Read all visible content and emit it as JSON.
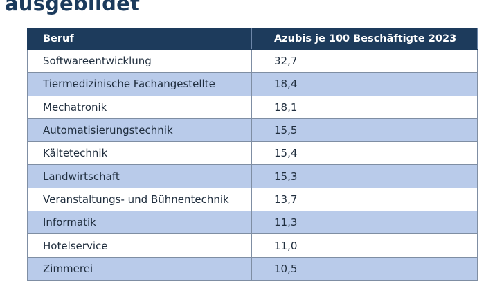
{
  "heading": "ausgebildet",
  "chart_data": {
    "type": "table",
    "columns": [
      "Beruf",
      "Azubis je 100 Beschäftigte 2023"
    ],
    "rows": [
      {
        "beruf": "Softwareentwicklung",
        "wert": "32,7"
      },
      {
        "beruf": "Tiermedizinische Fachangestellte",
        "wert": "18,4"
      },
      {
        "beruf": "Mechatronik",
        "wert": "18,1"
      },
      {
        "beruf": "Automatisierungstechnik",
        "wert": "15,5"
      },
      {
        "beruf": "Kältetechnik",
        "wert": "15,4"
      },
      {
        "beruf": "Landwirtschaft",
        "wert": "15,3"
      },
      {
        "beruf": "Veranstaltungs- und Bühnentechnik",
        "wert": "13,7"
      },
      {
        "beruf": "Informatik",
        "wert": "11,3"
      },
      {
        "beruf": "Hotelservice",
        "wert": "11,0"
      },
      {
        "beruf": "Zimmerei",
        "wert": "10,5"
      }
    ]
  },
  "colors": {
    "header_bg": "#1d3b5c",
    "stripe_bg": "#b9cbea",
    "heading_text": "#1b3a5c"
  }
}
